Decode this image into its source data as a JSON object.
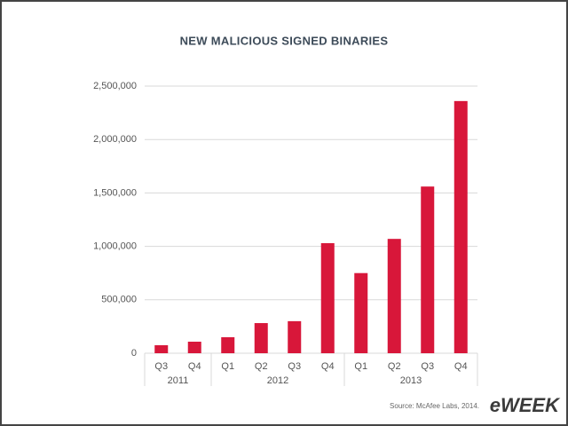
{
  "chart_data": {
    "type": "bar",
    "title": "NEW MALICIOUS SIGNED BINARIES",
    "groups": [
      {
        "label": "2011",
        "categories": [
          "Q3",
          "Q4"
        ]
      },
      {
        "label": "2012",
        "categories": [
          "Q1",
          "Q2",
          "Q3",
          "Q4"
        ]
      },
      {
        "label": "2013",
        "categories": [
          "Q1",
          "Q2",
          "Q3",
          "Q4"
        ]
      }
    ],
    "values": [
      75000,
      108000,
      150000,
      282000,
      300000,
      1030000,
      750000,
      1070000,
      1560000,
      2360000
    ],
    "color": "#d8173a",
    "ylim": [
      0,
      2500000
    ],
    "yticks": [
      0,
      {
        "value": 500000,
        "label": "500,000"
      },
      {
        "value": 1000000,
        "label": "1,000,000"
      },
      {
        "value": 1500000,
        "label": "1,500,000"
      },
      {
        "value": 2000000,
        "label": "2,000,000"
      },
      {
        "value": 2500000,
        "label": "2,500,000"
      }
    ],
    "grid": true,
    "source": "Source: McAfee Labs, 2014."
  },
  "watermark": "eWEEK"
}
